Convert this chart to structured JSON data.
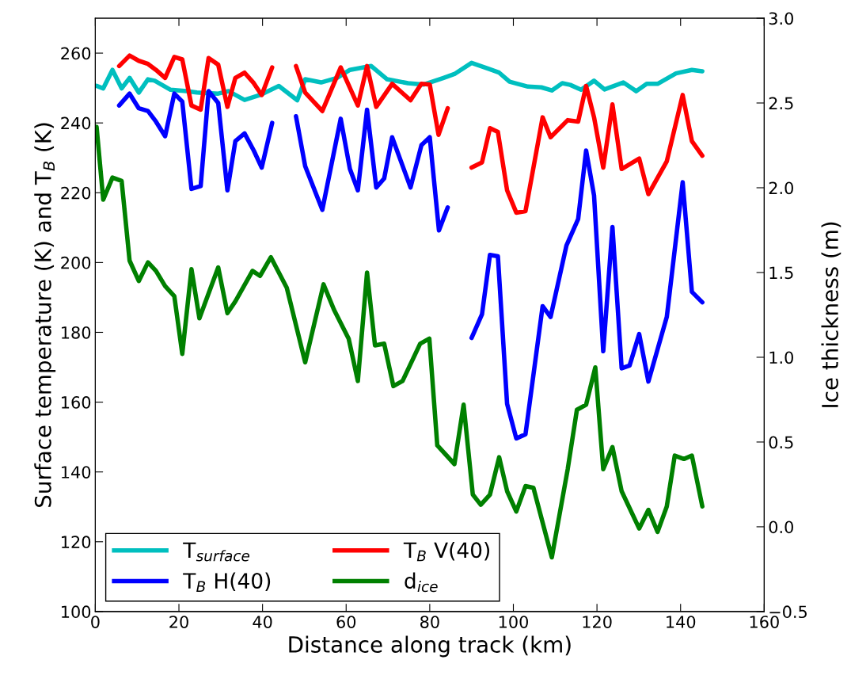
{
  "chart_data": {
    "type": "line",
    "xlabel": "Distance along track (km)",
    "ylabel": "Surface temperature (K) and T$_{B}$ (K)",
    "y2label": "Ice thickness (m)",
    "xlim": [
      0,
      160
    ],
    "xticks": [
      0,
      20,
      40,
      60,
      80,
      100,
      120,
      140,
      160
    ],
    "ylim": [
      100,
      270
    ],
    "yticks": [
      100,
      120,
      140,
      160,
      180,
      200,
      220,
      240,
      260
    ],
    "y2lim": [
      -0.5,
      3.0
    ],
    "y2ticks": [
      {
        "value": -0.5,
        "label": "−0.5"
      },
      {
        "value": 0,
        "label": "0.0"
      },
      {
        "value": 0.5,
        "label": "0.5"
      },
      {
        "value": 1,
        "label": "1.0"
      },
      {
        "value": 1.5,
        "label": "1.5"
      },
      {
        "value": 2,
        "label": "2.0"
      },
      {
        "value": 2.5,
        "label": "2.5"
      },
      {
        "value": 3,
        "label": "3.0"
      }
    ],
    "grid": false,
    "legend": "bottom left",
    "marker": "none",
    "line_style": "solid",
    "series": [
      {
        "name": "T$_{surface}$",
        "color": "#00bfbf",
        "x": [
          0.3,
          1.9,
          4.1,
          6.3,
          8.2,
          10.4,
          12.6,
          14.2,
          18,
          21.8,
          24.3,
          29.4,
          31.9,
          35.7,
          39.4,
          43.9,
          48.3,
          50.2,
          54,
          57.8,
          60.9,
          66,
          69.8,
          74.8,
          78.6,
          83.3,
          85.9,
          90,
          94.1,
          96.6,
          99.1,
          103.5,
          106.7,
          109.2,
          111.7,
          113.6,
          116.2,
          119.3,
          121.8,
          126.3,
          129.4,
          131.9,
          134.5,
          138.9,
          142.7,
          145.2
        ],
        "values": [
          250.6,
          249.9,
          255.2,
          249.9,
          252.9,
          248.7,
          252.5,
          252.1,
          249.5,
          249.1,
          248.7,
          248.4,
          249.1,
          246.6,
          248.0,
          250.6,
          246.5,
          252.5,
          251.6,
          252.9,
          255.2,
          256.3,
          252.5,
          251.4,
          251.0,
          252.9,
          254.0,
          257.2,
          255.5,
          254.4,
          251.8,
          250.4,
          250.2,
          249.3,
          251.4,
          250.9,
          249.5,
          252.1,
          249.6,
          251.6,
          249.1,
          251.2,
          251.2,
          254.2,
          255.2,
          254.8
        ]
      },
      {
        "name": "T$_{B}$ H(40)",
        "color": "#0000ff",
        "x": [
          5.7,
          8.2,
          10.4,
          12.6,
          14.5,
          16.7,
          18.9,
          20.8,
          23,
          25.2,
          27.1,
          29.4,
          31.6,
          33.5,
          35.7,
          37.9,
          39.8,
          42.3,
          45,
          48,
          50.2,
          54.3,
          58.7,
          60.9,
          62.8,
          65,
          67.2,
          69.1,
          71,
          75.4,
          78,
          80,
          82.2,
          84.3,
          87,
          90,
          92.5,
          94.4,
          96.3,
          98.5,
          100.7,
          102.9,
          107,
          108.9,
          112.7,
          115.5,
          117.4,
          119.3,
          121.5,
          123.7,
          125.9,
          127.8,
          130.1,
          132.3,
          136.7,
          140.5,
          142.7,
          145.2
        ],
        "values": [
          245.0,
          248.4,
          244.2,
          243.4,
          240.4,
          236.2,
          248.4,
          246.1,
          221.1,
          221.9,
          249.1,
          245.7,
          220.7,
          234.8,
          237.0,
          232.1,
          227.2,
          240.0,
          null,
          241.9,
          227.6,
          215.1,
          241.2,
          226.8,
          220.7,
          243.8,
          221.5,
          224.1,
          235.9,
          221.5,
          233.6,
          235.9,
          209.2,
          215.8,
          null,
          178.4,
          185.2,
          202.2,
          201.8,
          159.5,
          149.6,
          150.8,
          187.5,
          184.4,
          204.9,
          212.5,
          232.1,
          219.2,
          174.6,
          210.2,
          169.7,
          170.5,
          179.5,
          165.9,
          184.4,
          223.0,
          191.6,
          188.6
        ]
      },
      {
        "name": "T$_{B}$ V(40)",
        "color": "#ff0000",
        "x": [
          5.7,
          8.2,
          10.4,
          12.6,
          14.5,
          16.7,
          18.9,
          20.8,
          23,
          25.2,
          27.1,
          29.4,
          31.6,
          33.5,
          35.7,
          37.9,
          39.8,
          42.3,
          45,
          48,
          50.2,
          54.3,
          58.7,
          62.8,
          65,
          67.2,
          71,
          75.4,
          78,
          80,
          82.1,
          84.3,
          87,
          90,
          92.5,
          94.4,
          96.3,
          98.5,
          100.7,
          102.9,
          107,
          108.9,
          113,
          115.5,
          117.4,
          119.3,
          121.5,
          123.7,
          125.9,
          130.1,
          132.3,
          136.7,
          140.5,
          142.7,
          145.2
        ],
        "values": [
          256.3,
          259.3,
          257.8,
          256.9,
          255.2,
          252.9,
          258.9,
          258.2,
          245.0,
          243.8,
          258.6,
          256.7,
          244.6,
          252.9,
          254.4,
          251.4,
          248.0,
          255.9,
          null,
          256.3,
          248.7,
          243.4,
          255.9,
          245.0,
          256.3,
          244.6,
          251.2,
          246.5,
          251.2,
          251.0,
          236.6,
          244.2,
          null,
          227.2,
          228.7,
          238.5,
          237.4,
          220.7,
          214.3,
          214.7,
          241.6,
          235.9,
          240.8,
          240.4,
          250.6,
          241.6,
          227.2,
          245.3,
          226.8,
          229.8,
          219.6,
          229.0,
          248.0,
          234.8,
          230.6
        ]
      },
      {
        "name": "d$_{ice}$",
        "color": "#008000",
        "axis": "y2",
        "x": [
          0.3,
          1.9,
          4.1,
          6.3,
          8.2,
          10.4,
          12.6,
          14.5,
          16.7,
          18.9,
          20.8,
          23,
          24.9,
          29.4,
          31.6,
          33.5,
          37.6,
          39.4,
          42,
          45.8,
          50.2,
          54.6,
          57.1,
          60.6,
          62.8,
          65,
          66.9,
          69.1,
          71.3,
          73.5,
          77.7,
          79.9,
          81.8,
          85.9,
          88.1,
          90.3,
          92.2,
          94.4,
          96.6,
          98.5,
          100.7,
          102.9,
          104.8,
          109.2,
          113,
          115.2,
          117.4,
          119.6,
          121.5,
          123.7,
          125.9,
          130.1,
          132.3,
          134.5,
          136.7,
          138.6,
          140.8,
          142.7,
          145.2
        ],
        "values": [
          2.36,
          1.93,
          2.06,
          2.04,
          1.57,
          1.45,
          1.56,
          1.51,
          1.42,
          1.36,
          1.02,
          1.52,
          1.23,
          1.53,
          1.26,
          1.33,
          1.51,
          1.48,
          1.59,
          1.41,
          0.97,
          1.43,
          1.28,
          1.11,
          0.86,
          1.5,
          1.07,
          1.08,
          0.83,
          0.86,
          1.08,
          1.11,
          0.48,
          0.37,
          0.72,
          0.19,
          0.13,
          0.19,
          0.41,
          0.21,
          0.09,
          0.24,
          0.23,
          -0.18,
          0.34,
          0.69,
          0.72,
          0.94,
          0.34,
          0.47,
          0.21,
          -0.01,
          0.1,
          -0.03,
          0.12,
          0.42,
          0.4,
          0.42,
          0.12
        ]
      }
    ]
  }
}
